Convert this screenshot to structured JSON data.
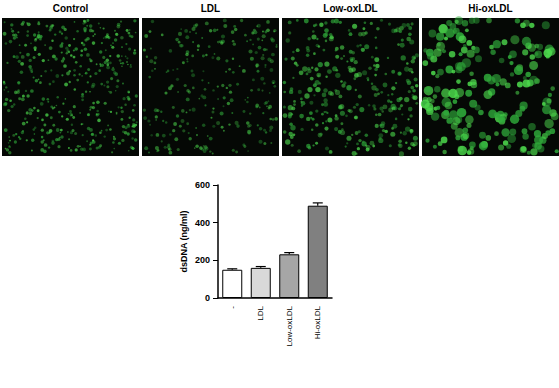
{
  "image_panels": {
    "labels": [
      "Control",
      "LDL",
      "Low-oxLDL",
      "Hi-oxLDL"
    ]
  },
  "chart_data": {
    "type": "bar",
    "y_label": "dsDNA (ng/ml)",
    "categories": [
      "-",
      "LDL",
      "Low-oxLDL",
      "Hi-oxLDL"
    ],
    "values": [
      150,
      160,
      232,
      490
    ],
    "errors": [
      5,
      7,
      9,
      15
    ],
    "colors": [
      "#ffffff",
      "#d9d9d9",
      "#a6a6a6",
      "#808080"
    ],
    "ylim": [
      0,
      600
    ],
    "yticks": [
      0,
      200,
      400,
      600
    ],
    "grid": false
  }
}
